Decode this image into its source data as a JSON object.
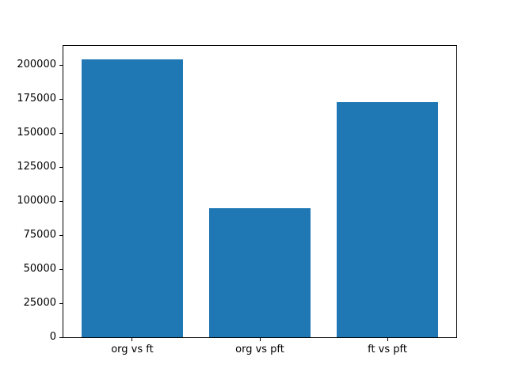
{
  "chart_data": {
    "type": "bar",
    "categories": [
      "org vs ft",
      "org vs pft",
      "ft vs pft"
    ],
    "values": [
      204000,
      95000,
      173000
    ],
    "title": "",
    "xlabel": "",
    "ylabel": "",
    "ylim": [
      0,
      214000
    ],
    "yticks": [
      0,
      25000,
      50000,
      75000,
      100000,
      125000,
      150000,
      175000,
      200000
    ],
    "xlim": [
      -0.54,
      2.54
    ],
    "bar_width": 0.8,
    "bar_color": "#1f77b4",
    "axis_color": "#000000",
    "background_color": "#ffffff",
    "grid": false,
    "legend": false
  }
}
